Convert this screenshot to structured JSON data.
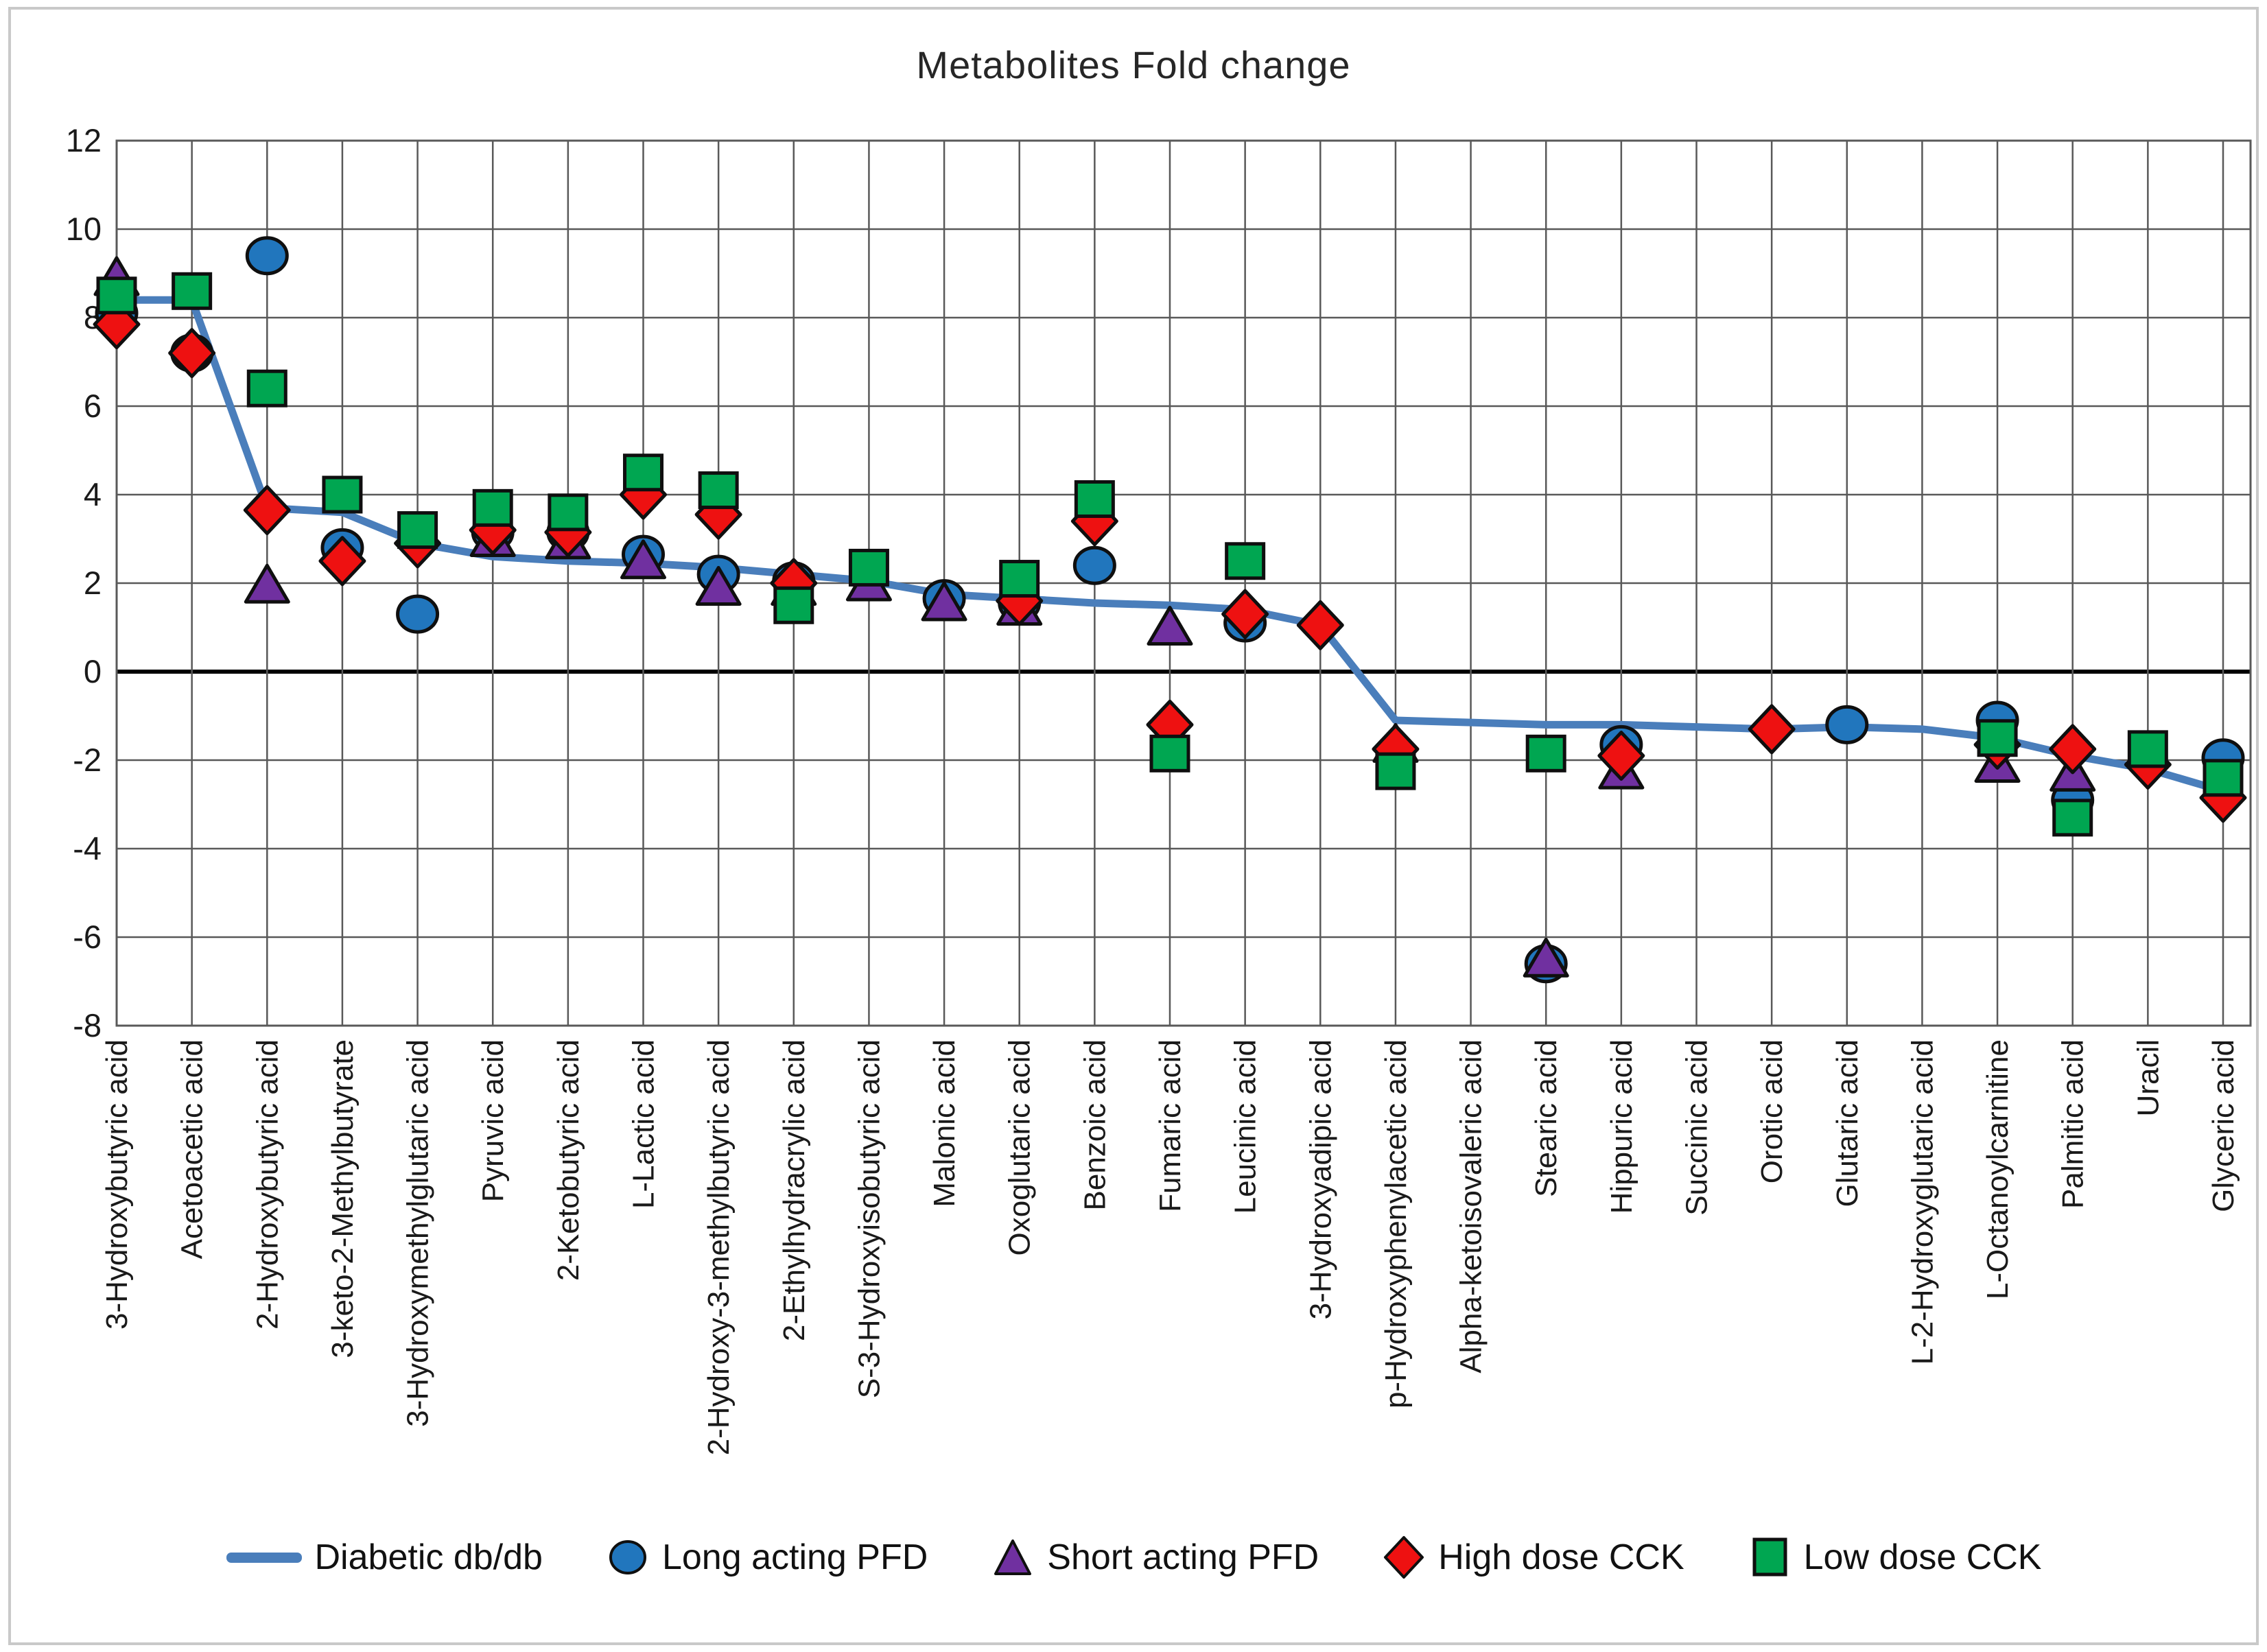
{
  "page": {
    "title": "Metabolites Fold change"
  },
  "colors": {
    "line": "#4a7ebb",
    "circle": "#2176bd",
    "triangle": "#7030a0",
    "diamond": "#ee1111",
    "square": "#00a651",
    "grid": "#595959",
    "zero_line": "#000000",
    "text": "#1a1a1a"
  },
  "chart_data": {
    "type": "line",
    "title": "Metabolites Fold change",
    "xlabel": "",
    "ylabel": "",
    "ylim": [
      -8,
      12
    ],
    "y_ticks": [
      12,
      10,
      8,
      6,
      4,
      2,
      0,
      -2,
      -4,
      -6,
      -8
    ],
    "grid": true,
    "zero_line": true,
    "legend_position": "bottom",
    "categories": [
      "3-Hydroxybutyric acid",
      "Acetoacetic acid",
      "2-Hydroxybutyric acid",
      "3-keto-2-Methylbutyrate",
      "3-Hydroxymethylglutaric acid",
      "Pyruvic acid",
      "2-Ketobutyric acid",
      "L-Lactic acid",
      "2-Hydroxy-3-methylbutyric acid",
      "2-Ethylhydracrylic acid",
      "S-3-Hydroxyisobutyric acid",
      "Malonic acid",
      "Oxoglutaric acid",
      "Benzoic acid",
      "Fumaric acid",
      "Leucinic acid",
      "3-Hydroxyadipic acid",
      "p-Hydroxyphenylacetic acid",
      "Alpha-ketoisovaleric acid",
      "Stearic acid",
      "Hippuric acid",
      "Succinic acid",
      "Orotic acid",
      "Glutaric acid",
      "L-2-Hydroxyglutaric acid",
      "L-Octanoylcarnitine",
      "Palmitic acid",
      "Uracil",
      "Glyceric acid"
    ],
    "series": [
      {
        "name": "Diabetic db/db",
        "type": "line",
        "marker": "none",
        "color": "#4a7ebb",
        "values": [
          8.4,
          8.4,
          3.7,
          3.6,
          2.9,
          2.6,
          2.5,
          2.45,
          2.35,
          2.2,
          2.05,
          1.75,
          1.65,
          1.55,
          1.5,
          1.4,
          1.05,
          -1.1,
          -1.15,
          -1.2,
          -1.2,
          -1.25,
          -1.3,
          -1.25,
          -1.3,
          -1.5,
          -1.9,
          -2.2,
          -2.7
        ]
      },
      {
        "name": "Long acting PFD",
        "type": "scatter",
        "marker": "circle",
        "color": "#2176bd",
        "values": [
          8.1,
          7.2,
          9.4,
          2.8,
          1.3,
          3.15,
          3.15,
          2.65,
          2.2,
          2.05,
          null,
          1.65,
          1.55,
          2.4,
          null,
          1.1,
          null,
          null,
          null,
          -6.6,
          -1.65,
          null,
          null,
          -1.2,
          null,
          -1.1,
          -2.9,
          null,
          -1.95
        ]
      },
      {
        "name": "Short acting PFD",
        "type": "scatter",
        "marker": "triangle",
        "color": "#7030a0",
        "values": [
          8.9,
          null,
          1.95,
          null,
          null,
          3.0,
          2.95,
          2.5,
          1.9,
          1.9,
          2.0,
          1.55,
          1.45,
          null,
          1.0,
          null,
          null,
          -1.65,
          null,
          -6.5,
          -2.25,
          null,
          null,
          null,
          null,
          -2.1,
          -2.3,
          null,
          null
        ]
      },
      {
        "name": "High dose CCK",
        "type": "scatter",
        "marker": "diamond",
        "color": "#ee1111",
        "values": [
          7.85,
          7.2,
          3.65,
          2.5,
          2.9,
          3.2,
          3.15,
          4.0,
          3.55,
          2.0,
          null,
          null,
          1.6,
          3.4,
          -1.2,
          1.3,
          1.05,
          -1.75,
          null,
          null,
          -1.9,
          null,
          -1.3,
          null,
          null,
          -1.65,
          -1.75,
          -2.1,
          -2.85
        ]
      },
      {
        "name": "Low dose CCK",
        "type": "scatter",
        "marker": "square",
        "color": "#00a651",
        "values": [
          8.5,
          8.6,
          6.4,
          4.0,
          3.2,
          3.7,
          3.6,
          4.5,
          4.1,
          1.5,
          2.35,
          null,
          2.1,
          3.9,
          -1.85,
          2.5,
          null,
          -2.25,
          null,
          -1.85,
          null,
          null,
          null,
          null,
          null,
          -1.5,
          -3.3,
          -1.75,
          -2.4
        ]
      }
    ]
  }
}
